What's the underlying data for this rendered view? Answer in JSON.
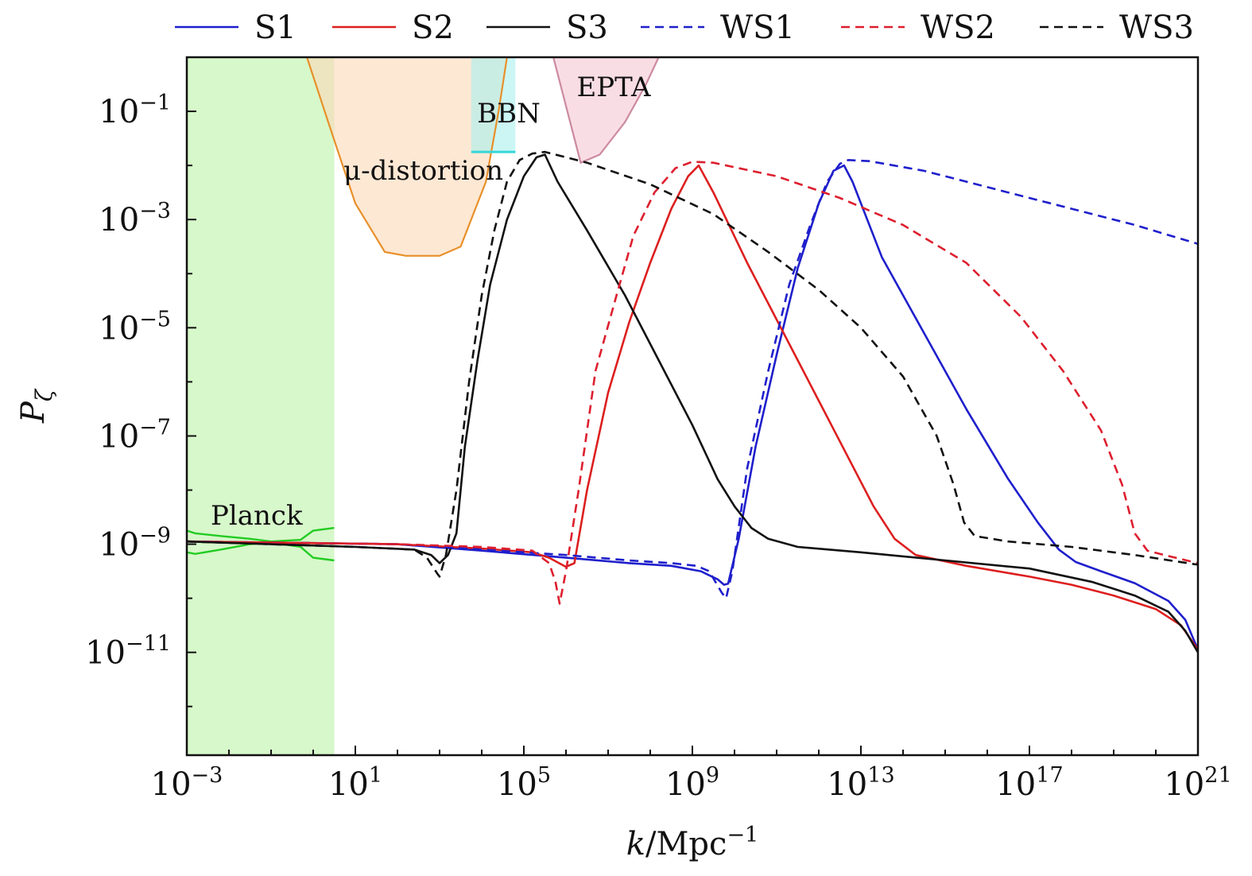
{
  "chart_data": {
    "type": "line",
    "x_scale": "log",
    "y_scale": "log",
    "xlim_exp": [
      -3,
      21
    ],
    "ylim_exp": [
      -12,
      0
    ],
    "x_ticks": [
      {
        "exp": -3,
        "label": "10",
        "sup": "−3"
      },
      {
        "exp": 1,
        "label": "10",
        "sup": "1"
      },
      {
        "exp": 5,
        "label": "10",
        "sup": "5"
      },
      {
        "exp": 9,
        "label": "10",
        "sup": "9"
      },
      {
        "exp": 13,
        "label": "10",
        "sup": "13"
      },
      {
        "exp": 17,
        "label": "10",
        "sup": "17"
      },
      {
        "exp": 21,
        "label": "10",
        "sup": "21"
      }
    ],
    "y_ticks": [
      {
        "exp": -1,
        "label": "10",
        "sup": "−1"
      },
      {
        "exp": -3,
        "label": "10",
        "sup": "−3"
      },
      {
        "exp": -5,
        "label": "10",
        "sup": "−5"
      },
      {
        "exp": -7,
        "label": "10",
        "sup": "−7"
      },
      {
        "exp": -9,
        "label": "10",
        "sup": "−9"
      },
      {
        "exp": -11,
        "label": "10",
        "sup": "−11"
      }
    ],
    "xlabel": {
      "main": "k",
      "unit": "/Mpc",
      "sup": "−1"
    },
    "ylabel": {
      "main": "P",
      "sub": "ζ"
    },
    "legend_placement": "top, outside plot",
    "grid": false,
    "regions": [
      {
        "name": "Planck",
        "label": "Planck",
        "color": "#c9f5b8",
        "points": [
          [
            -3,
            -12.9
          ],
          [
            -3,
            0
          ],
          [
            0.5,
            0
          ],
          [
            0.5,
            -12.9
          ]
        ]
      },
      {
        "name": "mu-distortion",
        "label": "μ-distortion",
        "color": "#fbd9b8",
        "edge": "#e8902a",
        "points": [
          [
            -0.15,
            0
          ],
          [
            0.4,
            -1.3
          ],
          [
            1.0,
            -2.7
          ],
          [
            1.7,
            -3.6
          ],
          [
            2.2,
            -3.67
          ],
          [
            3.0,
            -3.67
          ],
          [
            3.5,
            -3.5
          ],
          [
            4.1,
            -2.3
          ],
          [
            4.4,
            -1.0
          ],
          [
            4.6,
            0
          ]
        ]
      },
      {
        "name": "BBN",
        "label": "BBN",
        "color": "#a9f0ec",
        "edge": "#35d6d8",
        "points": [
          [
            3.75,
            0
          ],
          [
            3.75,
            -1.75
          ],
          [
            4.8,
            -1.75
          ],
          [
            4.8,
            0
          ]
        ]
      },
      {
        "name": "EPTA",
        "label": "EPTA",
        "color": "#f5c7d3",
        "edge": "#cc8aa0",
        "points": [
          [
            5.7,
            0
          ],
          [
            6.0,
            -0.9
          ],
          [
            6.35,
            -1.95
          ],
          [
            6.8,
            -1.8
          ],
          [
            7.4,
            -1.2
          ],
          [
            7.9,
            -0.5
          ],
          [
            8.2,
            0
          ]
        ]
      }
    ],
    "planck_band": {
      "color": "#22cc22",
      "upper": [
        [
          -3,
          -8.75
        ],
        [
          -2.8,
          -8.8
        ],
        [
          -2.2,
          -8.85
        ],
        [
          -1.5,
          -8.9
        ],
        [
          -1.0,
          -8.95
        ],
        [
          -0.3,
          -8.92
        ],
        [
          0.0,
          -8.75
        ],
        [
          0.5,
          -8.7
        ]
      ],
      "lower": [
        [
          -3,
          -9.15
        ],
        [
          -2.8,
          -9.18
        ],
        [
          -2.2,
          -9.1
        ],
        [
          -1.5,
          -9.0
        ],
        [
          -1.0,
          -8.97
        ],
        [
          -0.3,
          -9.05
        ],
        [
          0.0,
          -9.25
        ],
        [
          0.5,
          -9.3
        ]
      ]
    },
    "series": [
      {
        "name": "S1",
        "color": "#1f1fcc",
        "dash": false,
        "points": [
          [
            -3,
            -8.95
          ],
          [
            2,
            -9.0
          ],
          [
            4,
            -9.12
          ],
          [
            6,
            -9.25
          ],
          [
            7.5,
            -9.35
          ],
          [
            8.5,
            -9.4
          ],
          [
            9.2,
            -9.5
          ],
          [
            9.6,
            -9.65
          ],
          [
            9.75,
            -9.75
          ],
          [
            9.85,
            -9.73
          ],
          [
            10.1,
            -8.9
          ],
          [
            10.5,
            -7.2
          ],
          [
            11,
            -5.5
          ],
          [
            11.5,
            -3.9
          ],
          [
            12,
            -2.7
          ],
          [
            12.35,
            -2.1
          ],
          [
            12.6,
            -2.0
          ],
          [
            12.8,
            -2.3
          ],
          [
            13.5,
            -3.7
          ],
          [
            14.5,
            -5.1
          ],
          [
            15.5,
            -6.5
          ],
          [
            16.5,
            -7.8
          ],
          [
            17.2,
            -8.6
          ],
          [
            17.7,
            -9.1
          ],
          [
            18.1,
            -9.33
          ],
          [
            18.7,
            -9.5
          ],
          [
            19.5,
            -9.72
          ],
          [
            20.3,
            -10.05
          ],
          [
            20.7,
            -10.4
          ],
          [
            21,
            -10.95
          ]
        ]
      },
      {
        "name": "S2",
        "color": "#dd1f1f",
        "dash": false,
        "points": [
          [
            -3,
            -8.95
          ],
          [
            2,
            -9.0
          ],
          [
            4,
            -9.08
          ],
          [
            5.2,
            -9.15
          ],
          [
            5.6,
            -9.25
          ],
          [
            6.0,
            -9.42
          ],
          [
            6.2,
            -9.35
          ],
          [
            6.5,
            -8.0
          ],
          [
            7.0,
            -6.2
          ],
          [
            7.5,
            -4.9
          ],
          [
            8.0,
            -3.8
          ],
          [
            8.5,
            -2.8
          ],
          [
            8.9,
            -2.2
          ],
          [
            9.15,
            -2.0
          ],
          [
            9.5,
            -2.5
          ],
          [
            10.3,
            -3.8
          ],
          [
            11.5,
            -5.6
          ],
          [
            12.5,
            -7.1
          ],
          [
            13.3,
            -8.3
          ],
          [
            13.8,
            -8.9
          ],
          [
            14.3,
            -9.2
          ],
          [
            15.5,
            -9.4
          ],
          [
            17,
            -9.6
          ],
          [
            18,
            -9.75
          ],
          [
            19,
            -9.95
          ],
          [
            20,
            -10.2
          ],
          [
            20.6,
            -10.5
          ],
          [
            21,
            -10.95
          ]
        ]
      },
      {
        "name": "S3",
        "color": "#111111",
        "dash": false,
        "points": [
          [
            -3,
            -8.95
          ],
          [
            -1,
            -9.0
          ],
          [
            1,
            -9.05
          ],
          [
            2.4,
            -9.1
          ],
          [
            2.8,
            -9.2
          ],
          [
            3.0,
            -9.35
          ],
          [
            3.2,
            -9.2
          ],
          [
            3.4,
            -8.8
          ],
          [
            3.6,
            -7.2
          ],
          [
            3.9,
            -5.6
          ],
          [
            4.2,
            -4.2
          ],
          [
            4.6,
            -3.0
          ],
          [
            5.0,
            -2.2
          ],
          [
            5.3,
            -1.85
          ],
          [
            5.5,
            -1.8
          ],
          [
            5.8,
            -2.3
          ],
          [
            6.5,
            -3.2
          ],
          [
            7.4,
            -4.4
          ],
          [
            8.2,
            -5.6
          ],
          [
            9.0,
            -6.8
          ],
          [
            9.6,
            -7.8
          ],
          [
            10.0,
            -8.3
          ],
          [
            10.4,
            -8.7
          ],
          [
            10.8,
            -8.9
          ],
          [
            11.5,
            -9.05
          ],
          [
            13,
            -9.15
          ],
          [
            15,
            -9.3
          ],
          [
            17,
            -9.45
          ],
          [
            18.5,
            -9.7
          ],
          [
            19.5,
            -9.95
          ],
          [
            20.3,
            -10.25
          ],
          [
            20.7,
            -10.6
          ],
          [
            21,
            -11.0
          ]
        ]
      },
      {
        "name": "WS1",
        "color": "#1f1fcc",
        "dash": true,
        "points": [
          [
            -3,
            -8.95
          ],
          [
            2,
            -9.0
          ],
          [
            4,
            -9.1
          ],
          [
            6,
            -9.2
          ],
          [
            7.5,
            -9.3
          ],
          [
            8.5,
            -9.35
          ],
          [
            9.1,
            -9.4
          ],
          [
            9.4,
            -9.5
          ],
          [
            9.7,
            -9.9
          ],
          [
            9.8,
            -10.0
          ],
          [
            9.95,
            -9.5
          ],
          [
            10.3,
            -7.6
          ],
          [
            10.8,
            -5.8
          ],
          [
            11.3,
            -4.2
          ],
          [
            11.8,
            -3.1
          ],
          [
            12.2,
            -2.3
          ],
          [
            12.5,
            -1.97
          ],
          [
            12.7,
            -1.9
          ],
          [
            13.2,
            -1.92
          ],
          [
            14.5,
            -2.1
          ],
          [
            15.5,
            -2.3
          ],
          [
            16.5,
            -2.5
          ],
          [
            18,
            -2.8
          ],
          [
            19.5,
            -3.1
          ],
          [
            21,
            -3.45
          ]
        ]
      },
      {
        "name": "WS2",
        "color": "#dd1f2e",
        "dash": true,
        "points": [
          [
            -3,
            -8.95
          ],
          [
            2,
            -9.0
          ],
          [
            4,
            -9.05
          ],
          [
            5.2,
            -9.12
          ],
          [
            5.6,
            -9.35
          ],
          [
            5.75,
            -9.7
          ],
          [
            5.85,
            -10.1
          ],
          [
            6.0,
            -9.5
          ],
          [
            6.3,
            -8.0
          ],
          [
            6.7,
            -5.8
          ],
          [
            7.2,
            -4.4
          ],
          [
            7.6,
            -3.3
          ],
          [
            8.1,
            -2.5
          ],
          [
            8.6,
            -2.05
          ],
          [
            9.0,
            -1.93
          ],
          [
            9.5,
            -1.95
          ],
          [
            11,
            -2.2
          ],
          [
            12.5,
            -2.6
          ],
          [
            14,
            -3.1
          ],
          [
            15.5,
            -3.8
          ],
          [
            16.8,
            -4.8
          ],
          [
            17.8,
            -5.8
          ],
          [
            18.7,
            -6.9
          ],
          [
            19.2,
            -7.9
          ],
          [
            19.5,
            -8.8
          ],
          [
            19.8,
            -9.12
          ],
          [
            20.3,
            -9.22
          ],
          [
            21,
            -9.35
          ]
        ]
      },
      {
        "name": "WS3",
        "color": "#111111",
        "dash": true,
        "points": [
          [
            -3,
            -8.95
          ],
          [
            -1,
            -9.0
          ],
          [
            1,
            -9.05
          ],
          [
            2.4,
            -9.1
          ],
          [
            2.7,
            -9.25
          ],
          [
            2.95,
            -9.55
          ],
          [
            3.0,
            -9.6
          ],
          [
            3.15,
            -9.2
          ],
          [
            3.4,
            -8.0
          ],
          [
            3.7,
            -6.0
          ],
          [
            4.0,
            -4.4
          ],
          [
            4.3,
            -3.2
          ],
          [
            4.6,
            -2.3
          ],
          [
            4.9,
            -1.9
          ],
          [
            5.2,
            -1.78
          ],
          [
            5.5,
            -1.75
          ],
          [
            6.5,
            -1.95
          ],
          [
            8,
            -2.35
          ],
          [
            9.5,
            -2.9
          ],
          [
            10.8,
            -3.6
          ],
          [
            12,
            -4.3
          ],
          [
            13,
            -5.0
          ],
          [
            14,
            -5.9
          ],
          [
            14.8,
            -7.0
          ],
          [
            15.2,
            -7.9
          ],
          [
            15.45,
            -8.6
          ],
          [
            15.7,
            -8.85
          ],
          [
            16.5,
            -8.95
          ],
          [
            18,
            -9.05
          ],
          [
            19.5,
            -9.2
          ],
          [
            21,
            -9.38
          ]
        ]
      }
    ]
  }
}
